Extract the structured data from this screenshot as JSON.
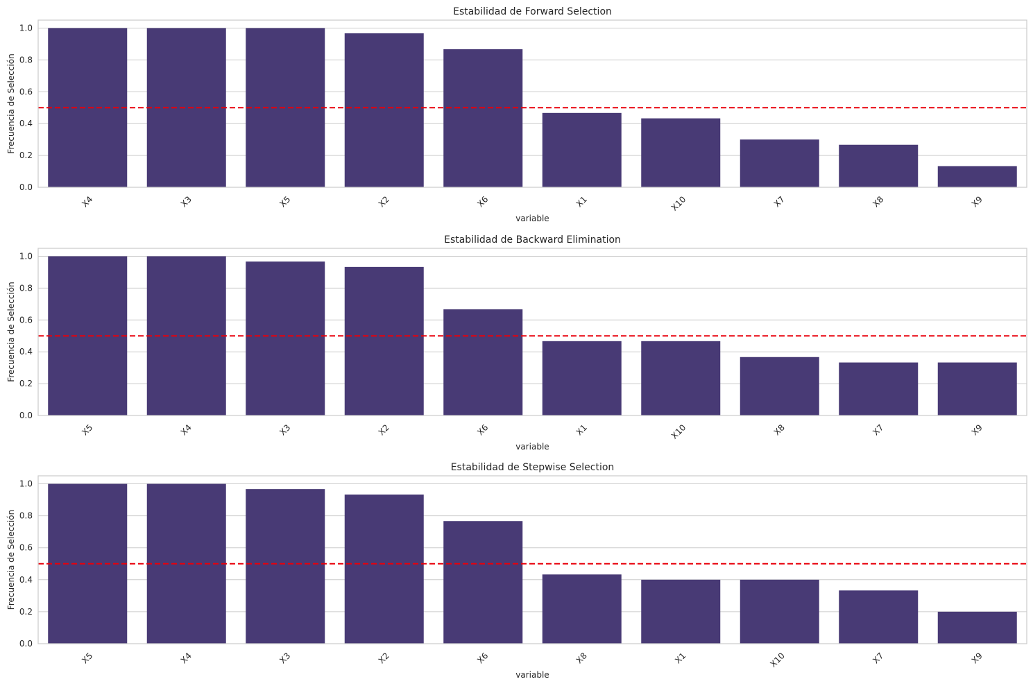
{
  "colors": {
    "bar": "#483a75",
    "threshold": "#e8000b",
    "grid": "#cccccc"
  },
  "chart_data": [
    {
      "type": "bar",
      "title": "Estabilidad de Forward Selection",
      "xlabel": "variable",
      "ylabel": "Frecuencia de Selección",
      "categories": [
        "X4",
        "X3",
        "X5",
        "X2",
        "X6",
        "X1",
        "X10",
        "X7",
        "X8",
        "X9"
      ],
      "values": [
        1.0,
        1.0,
        1.0,
        0.967,
        0.867,
        0.467,
        0.433,
        0.3,
        0.267,
        0.133
      ],
      "ylim": [
        0,
        1.05
      ],
      "yticks": [
        "0.0",
        "0.2",
        "0.4",
        "0.6",
        "0.8",
        "1.0"
      ],
      "threshold": 0.5,
      "grid": true
    },
    {
      "type": "bar",
      "title": "Estabilidad de Backward Elimination",
      "xlabel": "variable",
      "ylabel": "Frecuencia de Selección",
      "categories": [
        "X5",
        "X4",
        "X3",
        "X2",
        "X6",
        "X1",
        "X10",
        "X8",
        "X7",
        "X9"
      ],
      "values": [
        1.0,
        1.0,
        0.967,
        0.933,
        0.667,
        0.467,
        0.467,
        0.367,
        0.333,
        0.333
      ],
      "ylim": [
        0,
        1.05
      ],
      "yticks": [
        "0.0",
        "0.2",
        "0.4",
        "0.6",
        "0.8",
        "1.0"
      ],
      "threshold": 0.5,
      "grid": true
    },
    {
      "type": "bar",
      "title": "Estabilidad de Stepwise Selection",
      "xlabel": "variable",
      "ylabel": "Frecuencia de Selección",
      "categories": [
        "X5",
        "X4",
        "X3",
        "X2",
        "X6",
        "X8",
        "X1",
        "X10",
        "X7",
        "X9"
      ],
      "values": [
        1.0,
        1.0,
        0.967,
        0.933,
        0.767,
        0.433,
        0.4,
        0.4,
        0.333,
        0.2
      ],
      "ylim": [
        0,
        1.05
      ],
      "yticks": [
        "0.0",
        "0.2",
        "0.4",
        "0.6",
        "0.8",
        "1.0"
      ],
      "threshold": 0.5,
      "grid": true
    }
  ]
}
